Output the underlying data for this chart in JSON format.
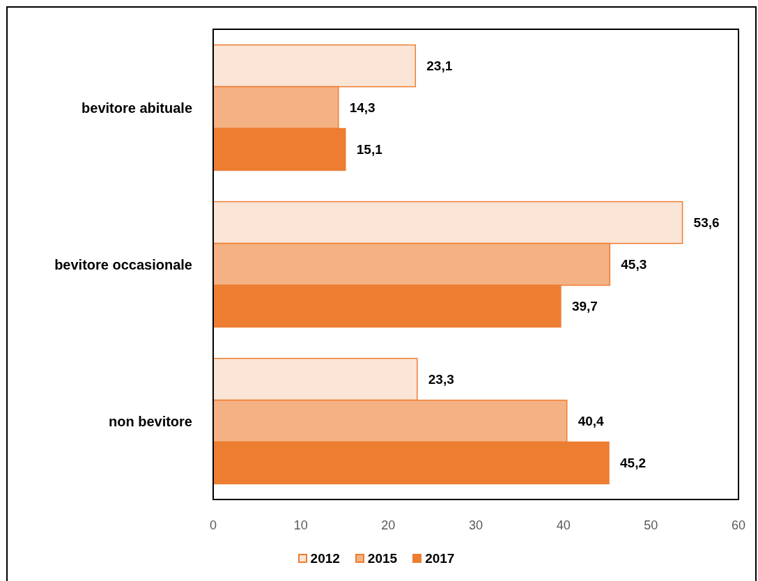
{
  "chart_data": {
    "type": "bar",
    "orientation": "horizontal",
    "categories": [
      "bevitore abituale",
      "bevitore occasionale",
      "non bevitore"
    ],
    "series": [
      {
        "name": "2012",
        "color": "#fbe5d6",
        "values": [
          23.1,
          53.6,
          23.3
        ],
        "value_labels": [
          "23,1",
          "53,6",
          "23,3"
        ]
      },
      {
        "name": "2015",
        "color": "#f4b183",
        "values": [
          14.3,
          45.3,
          40.4
        ],
        "value_labels": [
          "14,3",
          "45,3",
          "40,4"
        ]
      },
      {
        "name": "2017",
        "color": "#ed7d31",
        "values": [
          15.1,
          39.7,
          45.2
        ],
        "value_labels": [
          "15,1",
          "39,7",
          "45,2"
        ]
      }
    ],
    "xlim": [
      0,
      60
    ],
    "xticks": [
      0,
      10,
      20,
      30,
      40,
      50,
      60
    ],
    "legend": "bottom"
  }
}
